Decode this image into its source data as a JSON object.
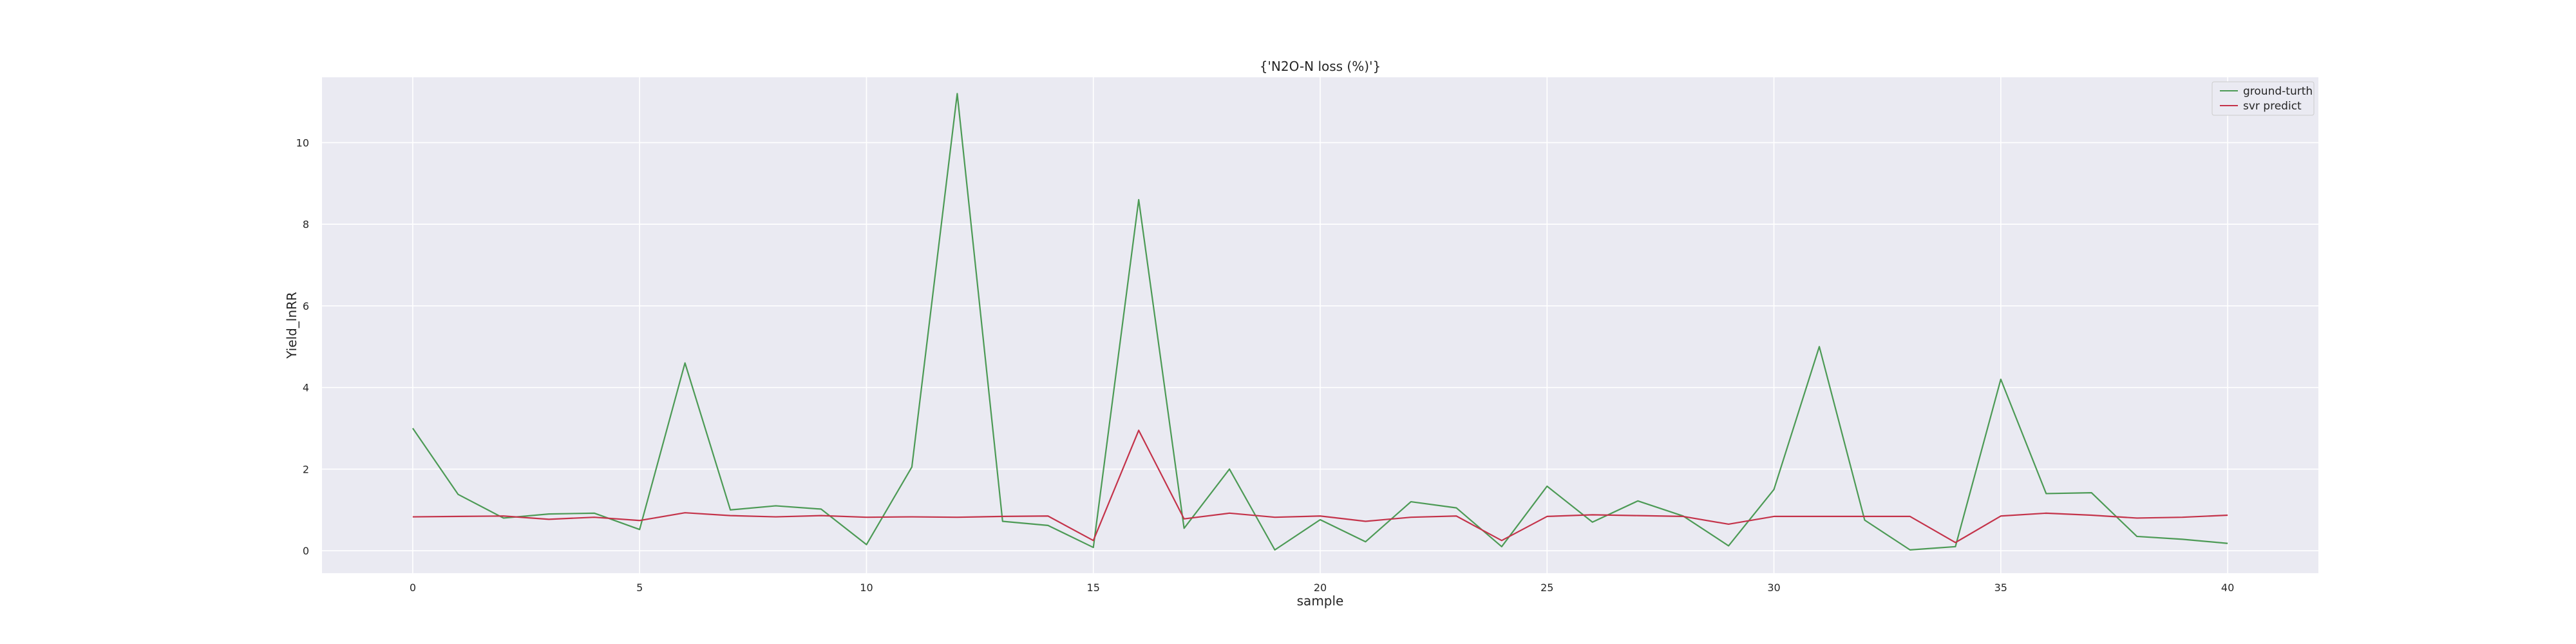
{
  "chart_data": {
    "type": "line",
    "title": "{'N2O-N loss (%)'}",
    "xlabel": "sample",
    "ylabel": "Yield_lnRR",
    "xlim": [
      -2,
      42
    ],
    "ylim": [
      -0.55,
      11.6
    ],
    "xticks": [
      0,
      5,
      10,
      15,
      20,
      25,
      30,
      35,
      40
    ],
    "yticks": [
      0,
      2,
      4,
      6,
      8,
      10
    ],
    "grid": true,
    "legend_position": "top-right",
    "x": [
      0,
      1,
      2,
      3,
      4,
      5,
      6,
      7,
      8,
      9,
      10,
      11,
      12,
      13,
      14,
      15,
      16,
      17,
      18,
      19,
      20,
      21,
      22,
      23,
      24,
      25,
      26,
      27,
      28,
      29,
      30,
      31,
      32,
      33,
      34,
      35,
      36,
      37,
      38,
      39,
      40
    ],
    "series": [
      {
        "name": "ground-turth",
        "color": "#4c9a55",
        "values": [
          3.0,
          1.38,
          0.8,
          0.9,
          0.92,
          0.52,
          4.6,
          1.0,
          1.1,
          1.02,
          0.15,
          2.05,
          11.2,
          0.72,
          0.62,
          0.08,
          8.6,
          0.55,
          2.0,
          0.02,
          0.76,
          0.22,
          1.2,
          1.05,
          0.1,
          1.58,
          0.7,
          1.22,
          0.85,
          0.12,
          1.5,
          5.0,
          0.75,
          0.02,
          0.1,
          4.2,
          1.4,
          1.42,
          0.35,
          0.28,
          0.18
        ]
      },
      {
        "name": "svr predict",
        "color": "#c4334a",
        "values": [
          0.83,
          0.84,
          0.85,
          0.77,
          0.82,
          0.74,
          0.93,
          0.86,
          0.83,
          0.86,
          0.82,
          0.83,
          0.82,
          0.84,
          0.85,
          0.25,
          2.95,
          0.78,
          0.92,
          0.82,
          0.85,
          0.72,
          0.82,
          0.85,
          0.25,
          0.84,
          0.88,
          0.86,
          0.84,
          0.65,
          0.84,
          0.84,
          0.84,
          0.84,
          0.2,
          0.85,
          0.92,
          0.87,
          0.8,
          0.82,
          0.87
        ]
      }
    ]
  }
}
